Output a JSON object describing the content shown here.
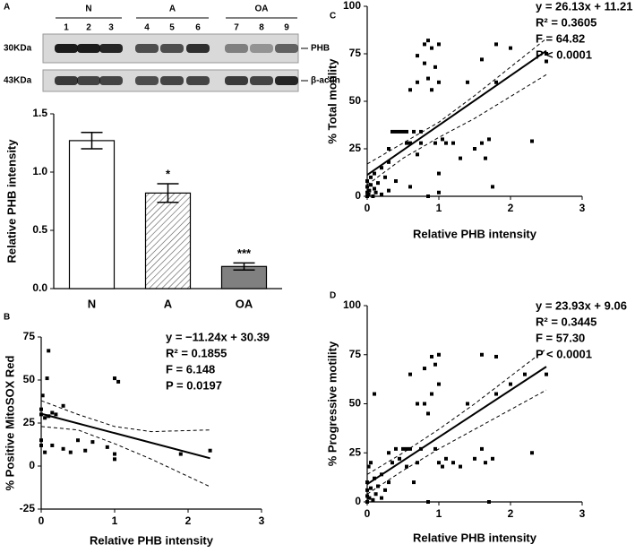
{
  "panel_labels": [
    "A",
    "B",
    "C",
    "D"
  ],
  "blot": {
    "groups": [
      "N",
      "A",
      "OA"
    ],
    "lanes": [
      "1",
      "2",
      "3",
      "4",
      "5",
      "6",
      "7",
      "8",
      "9"
    ],
    "rows": [
      {
        "marker": "30KDa",
        "protein": "PHB"
      },
      {
        "marker": "43KDa",
        "protein": "β-actin"
      }
    ]
  },
  "chart_data": [
    {
      "type": "bar",
      "ylabel": "Relative PHB intensity",
      "categories": [
        "N",
        "A",
        "OA"
      ],
      "values": [
        1.27,
        0.82,
        0.19
      ],
      "errors": [
        0.07,
        0.08,
        0.03
      ],
      "colors": [
        "#ffffff",
        "#ffffff",
        "#808080"
      ],
      "hatch": [
        false,
        true,
        false
      ],
      "annotations": [
        {
          "category": "A",
          "text": "*"
        },
        {
          "category": "OA",
          "text": "***"
        }
      ],
      "ylim": [
        0,
        1.5
      ],
      "yticks": [
        {
          "value": 0,
          "label": "0.0"
        },
        0.5,
        {
          "value": 1,
          "label": "1.0"
        },
        1.5
      ]
    },
    {
      "type": "scatter",
      "xlabel": "Relative PHB intensity",
      "ylabel": "% Positive MitoSOX Red",
      "stats": [
        "y = −11.24x + 30.39",
        "R² = 0.1855",
        "F = 6.148",
        "P = 0.0197"
      ],
      "x": [
        0,
        0,
        0,
        0,
        0.02,
        0.05,
        0.05,
        0.1,
        0.08,
        0.1,
        0.15,
        0.15,
        0.2,
        0.3,
        0.3,
        0.4,
        0.5,
        0.6,
        0.7,
        0.9,
        1.0,
        1.05,
        1.0,
        1.0,
        1.9,
        2.3
      ],
      "values": [
        33,
        30,
        15,
        12,
        41,
        28,
        8,
        67,
        51,
        29,
        31,
        12,
        30,
        35,
        10,
        8,
        15,
        9,
        14,
        11,
        51,
        49,
        7,
        4,
        7,
        9
      ],
      "fit": {
        "x": [
          0,
          2.3
        ],
        "y": [
          30.39,
          4.54
        ]
      },
      "ci_upper": {
        "x": [
          0,
          0.5,
          1,
          1.5,
          2.3
        ],
        "y": [
          38,
          30,
          23,
          20,
          21
        ]
      },
      "ci_lower": {
        "x": [
          0,
          0.5,
          1,
          1.5,
          2.3
        ],
        "y": [
          23,
          21,
          13,
          4,
          -12
        ]
      },
      "xlim": [
        0,
        3
      ],
      "xticks": [
        0,
        1,
        2,
        3
      ],
      "ylim": [
        -25,
        75
      ],
      "yticks": [
        -25,
        0,
        25,
        50,
        75
      ]
    },
    {
      "type": "scatter",
      "xlabel": "Relative PHB intensity",
      "ylabel": "% Total motility",
      "stats": [
        "y = 26.13x + 11.21",
        "R² = 0.3605",
        "F = 64.82",
        "P < 0.0001"
      ],
      "x": [
        0,
        0,
        0,
        0,
        0.02,
        0.03,
        0.05,
        0.05,
        0.08,
        0.1,
        0.1,
        0.12,
        0.15,
        0.2,
        0.2,
        0.25,
        0.3,
        0.3,
        0.3,
        0.35,
        0.4,
        0.4,
        0.45,
        0.5,
        0.55,
        0.55,
        0.6,
        0.6,
        0.6,
        0.65,
        0.7,
        0.7,
        0.7,
        0.75,
        0.75,
        0.8,
        0.8,
        0.85,
        0.85,
        0.9,
        0.9,
        0.95,
        0.95,
        1.0,
        1.0,
        1.0,
        1.05,
        1.1,
        1.2,
        1.3,
        1.4,
        1.5,
        1.6,
        1.6,
        1.65,
        1.7,
        1.75,
        1.8,
        1.8,
        2.0,
        2.3,
        2.5,
        2.5,
        1.0,
        0.85
      ],
      "values": [
        0,
        2,
        5,
        8,
        1,
        3,
        6,
        10,
        0,
        4,
        12,
        2,
        7,
        15,
        1,
        10,
        18,
        3,
        25,
        34,
        34,
        8,
        34,
        34,
        28,
        34,
        28,
        56,
        5,
        34,
        60,
        22,
        74,
        28,
        34,
        70,
        80,
        82,
        62,
        78,
        56,
        68,
        28,
        60,
        80,
        12,
        30,
        28,
        28,
        20,
        60,
        25,
        28,
        72,
        20,
        30,
        5,
        80,
        60,
        78,
        29,
        71,
        75,
        2,
        0
      ],
      "fit": {
        "x": [
          0,
          2.5
        ],
        "y": [
          11.21,
          76.54
        ]
      },
      "ci_upper": {
        "x": [
          0,
          0.5,
          1,
          1.5,
          2.5
        ],
        "y": [
          17,
          28,
          39,
          53,
          83
        ]
      },
      "ci_lower": {
        "x": [
          0,
          0.5,
          1,
          1.5,
          2.5
        ],
        "y": [
          6,
          20,
          31,
          41,
          64
        ]
      },
      "xlim": [
        0,
        3
      ],
      "xticks": [
        0,
        1,
        2,
        3
      ],
      "ylim": [
        0,
        100
      ],
      "yticks": [
        0,
        25,
        50,
        75,
        100
      ]
    },
    {
      "type": "scatter",
      "xlabel": "Relative PHB intensity",
      "ylabel": "% Progressive motility",
      "stats": [
        "y = 23.93x + 9.06",
        "R² = 0.3445",
        "F = 57.30",
        "P < 0.0001"
      ],
      "x": [
        0,
        0,
        0,
        0,
        0.02,
        0.03,
        0.05,
        0.05,
        0.08,
        0.1,
        0.1,
        0.12,
        0.15,
        0.2,
        0.2,
        0.25,
        0.3,
        0.3,
        0.35,
        0.4,
        0.45,
        0.5,
        0.55,
        0.55,
        0.6,
        0.6,
        0.65,
        0.7,
        0.7,
        0.75,
        0.8,
        0.8,
        0.85,
        0.85,
        0.9,
        0.9,
        0.95,
        0.95,
        1.0,
        1.0,
        1.0,
        1.05,
        1.1,
        1.2,
        1.3,
        1.4,
        1.5,
        1.6,
        1.6,
        1.65,
        1.7,
        1.75,
        1.8,
        1.8,
        2.0,
        2.2,
        2.3,
        2.5
      ],
      "values": [
        0,
        3,
        6,
        10,
        18,
        2,
        7,
        20,
        1,
        55,
        12,
        4,
        8,
        14,
        2,
        6,
        25,
        10,
        20,
        27,
        22,
        27,
        18,
        27,
        27,
        65,
        10,
        20,
        50,
        27,
        50,
        68,
        45,
        0,
        74,
        55,
        70,
        27,
        60,
        75,
        20,
        18,
        22,
        20,
        18,
        50,
        22,
        27,
        75,
        20,
        0,
        22,
        74,
        55,
        60,
        65,
        25,
        65
      ],
      "fit": {
        "x": [
          0,
          2.5
        ],
        "y": [
          9.06,
          68.89
        ]
      },
      "ci_upper": {
        "x": [
          0,
          0.5,
          1,
          1.5,
          2.5
        ],
        "y": [
          14,
          25,
          37,
          50,
          78
        ]
      },
      "ci_lower": {
        "x": [
          0,
          0.5,
          1,
          1.5,
          2.5
        ],
        "y": [
          4,
          16,
          27,
          37,
          57
        ]
      },
      "xlim": [
        0,
        3
      ],
      "xticks": [
        0,
        1,
        2,
        3
      ],
      "ylim": [
        0,
        100
      ],
      "yticks": [
        0,
        25,
        50,
        75,
        100
      ]
    }
  ]
}
